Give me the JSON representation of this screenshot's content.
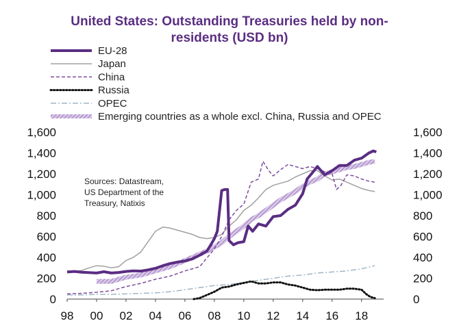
{
  "chart_data": {
    "type": "line",
    "title_line1": "United States: Outstanding Treasuries held by non-",
    "title_line2": "residents (USD bn)",
    "xlabel": "",
    "ylabel": "",
    "xlim": [
      1998,
      2019.5
    ],
    "ylim": [
      0,
      1600
    ],
    "x_ticks": [
      "98",
      "00",
      "02",
      "04",
      "06",
      "08",
      "10",
      "12",
      "14",
      "16",
      "18"
    ],
    "y_ticks": [
      "0",
      "200",
      "400",
      "600",
      "800",
      "1,000",
      "1,200",
      "1,400",
      "1,600"
    ],
    "y_tick_values": [
      0,
      200,
      400,
      600,
      800,
      1000,
      1200,
      1400,
      1600
    ],
    "legend_position": "top-left",
    "grid": false,
    "annotation_lines": [
      "Sources: Datastream,",
      "US Department  of the",
      "Treasury, Natixis"
    ],
    "series": [
      {
        "name": "EU-28",
        "color": "#5a2d82",
        "style": "thick",
        "points": [
          [
            1998,
            260
          ],
          [
            1998.5,
            265
          ],
          [
            1999,
            258
          ],
          [
            2000,
            250
          ],
          [
            2000.5,
            262
          ],
          [
            2001,
            250
          ],
          [
            2001.5,
            255
          ],
          [
            2002,
            265
          ],
          [
            2002.5,
            270
          ],
          [
            2003,
            268
          ],
          [
            2003.5,
            280
          ],
          [
            2004,
            295
          ],
          [
            2004.5,
            320
          ],
          [
            2005,
            340
          ],
          [
            2005.5,
            355
          ],
          [
            2006,
            365
          ],
          [
            2006.5,
            385
          ],
          [
            2007,
            420
          ],
          [
            2007.5,
            460
          ],
          [
            2007.8,
            530
          ],
          [
            2008,
            580
          ],
          [
            2008.2,
            650
          ],
          [
            2008.5,
            1040
          ],
          [
            2008.7,
            1050
          ],
          [
            2008.9,
            1050
          ],
          [
            2009,
            560
          ],
          [
            2009.3,
            520
          ],
          [
            2009.6,
            540
          ],
          [
            2010,
            550
          ],
          [
            2010.3,
            700
          ],
          [
            2010.6,
            650
          ],
          [
            2011,
            720
          ],
          [
            2011.5,
            700
          ],
          [
            2012,
            790
          ],
          [
            2012.5,
            800
          ],
          [
            2013,
            860
          ],
          [
            2013.5,
            900
          ],
          [
            2014,
            1010
          ],
          [
            2014.3,
            1150
          ],
          [
            2014.6,
            1200
          ],
          [
            2015,
            1270
          ],
          [
            2015.5,
            1190
          ],
          [
            2016,
            1230
          ],
          [
            2016.5,
            1280
          ],
          [
            2017,
            1280
          ],
          [
            2017.5,
            1330
          ],
          [
            2018,
            1350
          ],
          [
            2018.5,
            1400
          ],
          [
            2018.8,
            1420
          ],
          [
            2019,
            1410
          ]
        ]
      },
      {
        "name": "Japan",
        "color": "#9a9a9a",
        "style": "thin",
        "points": [
          [
            1998,
            270
          ],
          [
            1998.5,
            265
          ],
          [
            1999,
            275
          ],
          [
            1999.5,
            300
          ],
          [
            2000,
            320
          ],
          [
            2000.5,
            315
          ],
          [
            2001,
            300
          ],
          [
            2001.5,
            310
          ],
          [
            2002,
            370
          ],
          [
            2002.5,
            400
          ],
          [
            2003,
            450
          ],
          [
            2003.5,
            550
          ],
          [
            2004,
            650
          ],
          [
            2004.5,
            690
          ],
          [
            2005,
            680
          ],
          [
            2005.5,
            660
          ],
          [
            2006,
            640
          ],
          [
            2006.5,
            620
          ],
          [
            2007,
            590
          ],
          [
            2007.5,
            580
          ],
          [
            2008,
            590
          ],
          [
            2008.5,
            620
          ],
          [
            2009,
            700
          ],
          [
            2009.5,
            760
          ],
          [
            2010,
            850
          ],
          [
            2010.5,
            900
          ],
          [
            2011,
            970
          ],
          [
            2011.5,
            1050
          ],
          [
            2012,
            1090
          ],
          [
            2012.5,
            1110
          ],
          [
            2013,
            1130
          ],
          [
            2013.5,
            1170
          ],
          [
            2014,
            1200
          ],
          [
            2014.5,
            1230
          ],
          [
            2015,
            1230
          ],
          [
            2015.5,
            1180
          ],
          [
            2016,
            1140
          ],
          [
            2016.5,
            1150
          ],
          [
            2017,
            1120
          ],
          [
            2017.5,
            1090
          ],
          [
            2018,
            1060
          ],
          [
            2018.5,
            1040
          ],
          [
            2018.9,
            1030
          ]
        ]
      },
      {
        "name": "China",
        "color": "#7b4a9e",
        "style": "dashed",
        "points": [
          [
            1998,
            50
          ],
          [
            1999,
            55
          ],
          [
            2000,
            65
          ],
          [
            2001,
            80
          ],
          [
            2002,
            120
          ],
          [
            2003,
            150
          ],
          [
            2004,
            190
          ],
          [
            2005,
            220
          ],
          [
            2006,
            270
          ],
          [
            2007,
            310
          ],
          [
            2008,
            480
          ],
          [
            2008.5,
            600
          ],
          [
            2009,
            760
          ],
          [
            2009.5,
            850
          ],
          [
            2010,
            910
          ],
          [
            2010.5,
            1120
          ],
          [
            2011,
            1150
          ],
          [
            2011.3,
            1320
          ],
          [
            2011.7,
            1230
          ],
          [
            2012,
            1180
          ],
          [
            2012.5,
            1240
          ],
          [
            2013,
            1290
          ],
          [
            2013.5,
            1270
          ],
          [
            2014,
            1250
          ],
          [
            2014.5,
            1270
          ],
          [
            2015,
            1250
          ],
          [
            2015.5,
            1220
          ],
          [
            2016,
            1200
          ],
          [
            2016.3,
            1050
          ],
          [
            2016.6,
            1090
          ],
          [
            2017,
            1190
          ],
          [
            2017.5,
            1180
          ],
          [
            2018,
            1150
          ],
          [
            2018.5,
            1130
          ],
          [
            2018.9,
            1120
          ]
        ]
      },
      {
        "name": "Russia",
        "color": "#111111",
        "style": "dotted",
        "points": [
          [
            2006.6,
            0
          ],
          [
            2007,
            10
          ],
          [
            2007.5,
            40
          ],
          [
            2008,
            70
          ],
          [
            2008.5,
            110
          ],
          [
            2009,
            120
          ],
          [
            2009.5,
            140
          ],
          [
            2010,
            155
          ],
          [
            2010.5,
            170
          ],
          [
            2011,
            150
          ],
          [
            2011.5,
            150
          ],
          [
            2012,
            160
          ],
          [
            2012.5,
            160
          ],
          [
            2013,
            140
          ],
          [
            2013.5,
            130
          ],
          [
            2014,
            110
          ],
          [
            2014.5,
            90
          ],
          [
            2015,
            85
          ],
          [
            2015.5,
            90
          ],
          [
            2016,
            90
          ],
          [
            2016.5,
            90
          ],
          [
            2017,
            100
          ],
          [
            2017.5,
            100
          ],
          [
            2018,
            90
          ],
          [
            2018.3,
            50
          ],
          [
            2018.6,
            20
          ],
          [
            2018.9,
            10
          ]
        ]
      },
      {
        "name": "OPEC",
        "color": "#9fb6c6",
        "style": "dashdot",
        "points": [
          [
            1998,
            40
          ],
          [
            1999,
            40
          ],
          [
            2000,
            45
          ],
          [
            2001,
            45
          ],
          [
            2002,
            50
          ],
          [
            2003,
            55
          ],
          [
            2004,
            60
          ],
          [
            2005,
            70
          ],
          [
            2006,
            90
          ],
          [
            2007,
            110
          ],
          [
            2008,
            130
          ],
          [
            2009,
            140
          ],
          [
            2010,
            160
          ],
          [
            2011,
            180
          ],
          [
            2012,
            200
          ],
          [
            2013,
            220
          ],
          [
            2014,
            230
          ],
          [
            2015,
            250
          ],
          [
            2016,
            260
          ],
          [
            2017,
            270
          ],
          [
            2018,
            290
          ],
          [
            2018.9,
            320
          ]
        ]
      },
      {
        "name": "Emerging countries as a whole excl. China, Russia and OPEC",
        "color": "#b69ad0",
        "style": "hatched",
        "points": [
          [
            2000,
            170
          ],
          [
            2000.5,
            170
          ],
          [
            2001,
            170
          ],
          [
            2001.5,
            190
          ],
          [
            2002,
            210
          ],
          [
            2002.5,
            220
          ],
          [
            2003,
            230
          ],
          [
            2003.5,
            250
          ],
          [
            2004,
            270
          ],
          [
            2004.5,
            290
          ],
          [
            2005,
            310
          ],
          [
            2005.5,
            340
          ],
          [
            2006,
            370
          ],
          [
            2006.5,
            400
          ],
          [
            2007,
            430
          ],
          [
            2007.5,
            460
          ],
          [
            2008,
            500
          ],
          [
            2008.5,
            540
          ],
          [
            2009,
            600
          ],
          [
            2009.5,
            650
          ],
          [
            2010,
            700
          ],
          [
            2010.5,
            760
          ],
          [
            2011,
            800
          ],
          [
            2011.5,
            850
          ],
          [
            2012,
            900
          ],
          [
            2012.5,
            950
          ],
          [
            2013,
            990
          ],
          [
            2013.5,
            1030
          ],
          [
            2014,
            1080
          ],
          [
            2014.5,
            1120
          ],
          [
            2015,
            1150
          ],
          [
            2015.5,
            1200
          ],
          [
            2016,
            1220
          ],
          [
            2016.5,
            1240
          ],
          [
            2017,
            1260
          ],
          [
            2017.5,
            1270
          ],
          [
            2018,
            1290
          ],
          [
            2018.5,
            1310
          ],
          [
            2018.9,
            1320
          ]
        ]
      }
    ]
  }
}
